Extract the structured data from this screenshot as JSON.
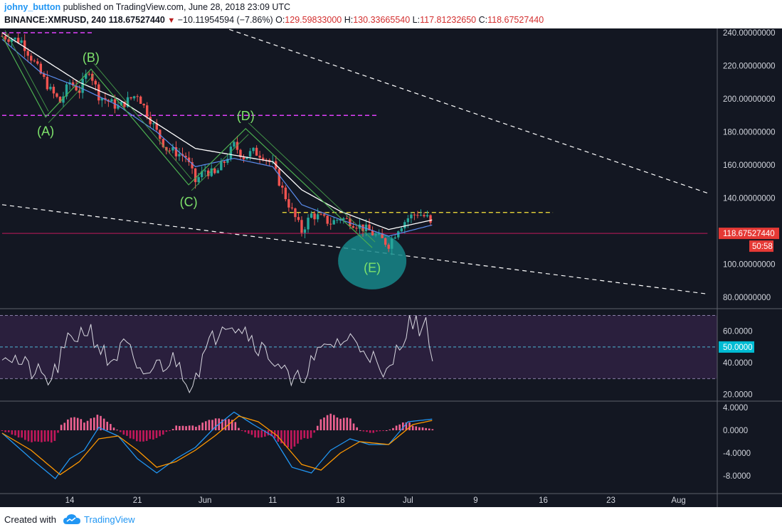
{
  "header": {
    "author": "johny_button",
    "published": "published on TradingView.com, June 28, 2018 23:09 UTC",
    "symbol": "BINANCE:XMRUSD, 240",
    "last": "118.67527440",
    "change": "−10.11954594 (−7.86%)",
    "o_label": "O:",
    "o": "129.59833000",
    "h_label": "H:",
    "h": "130.33665540",
    "l_label": "L:",
    "l": "117.81232650",
    "c_label": "C:",
    "c": "118.67527440"
  },
  "footer": {
    "created_with": "Created with",
    "brand": "TradingView"
  },
  "colors": {
    "background": "#131722",
    "up": "#26a69a",
    "down": "#ef5350",
    "ma_white": "#ffffff",
    "ma_blue": "#5b8def",
    "pattern": "#4caf50",
    "label_green": "#7ee36b",
    "magenta": "#e040fb",
    "yellow": "#ffeb3b",
    "rsi_band": "#2a1f3d",
    "macd_blue": "#2196f3",
    "macd_orange": "#ff9800",
    "hist_up": "#f06292",
    "ellipse": "#17878a"
  },
  "chart_data": [
    {
      "type": "candlestick",
      "x_labels": [
        "14",
        "21",
        "Jun",
        "11",
        "18",
        "Jul",
        "9",
        "16",
        "23",
        "Aug"
      ],
      "y_ticks": [
        "240.00000000",
        "220.00000000",
        "200.00000000",
        "180.00000000",
        "160.00000000",
        "140.00000000",
        "100.00000000",
        "80.00000000"
      ],
      "ylim": [
        74,
        242
      ],
      "price_label": "118.67527440",
      "countdown": "50:58",
      "wave_labels": [
        "(A)",
        "(B)",
        "(C)",
        "(D)",
        "(E)"
      ],
      "anchors": [
        {
          "day": 0,
          "price": 238
        },
        {
          "day": 2,
          "price": 235
        },
        {
          "day": 4,
          "price": 215
        },
        {
          "day": 5,
          "price": 205
        },
        {
          "day": 6,
          "price": 198
        },
        {
          "day": 7,
          "price": 210
        },
        {
          "day": 8,
          "price": 205
        },
        {
          "day": 9,
          "price": 218
        },
        {
          "day": 10,
          "price": 202
        },
        {
          "day": 12,
          "price": 195
        },
        {
          "day": 14,
          "price": 203
        },
        {
          "day": 16,
          "price": 180
        },
        {
          "day": 17,
          "price": 170
        },
        {
          "day": 19,
          "price": 165
        },
        {
          "day": 20,
          "price": 150
        },
        {
          "day": 21,
          "price": 157
        },
        {
          "day": 22,
          "price": 154
        },
        {
          "day": 23,
          "price": 162
        },
        {
          "day": 24,
          "price": 172
        },
        {
          "day": 25,
          "price": 165
        },
        {
          "day": 26,
          "price": 168
        },
        {
          "day": 27,
          "price": 166
        },
        {
          "day": 28,
          "price": 160
        },
        {
          "day": 29,
          "price": 145
        },
        {
          "day": 30,
          "price": 132
        },
        {
          "day": 31,
          "price": 120
        },
        {
          "day": 32,
          "price": 130
        },
        {
          "day": 33,
          "price": 128
        },
        {
          "day": 34,
          "price": 125
        },
        {
          "day": 35,
          "price": 128
        },
        {
          "day": 36,
          "price": 126
        },
        {
          "day": 37,
          "price": 123
        },
        {
          "day": 38,
          "price": 120
        },
        {
          "day": 39,
          "price": 116
        },
        {
          "day": 40,
          "price": 112
        },
        {
          "day": 41,
          "price": 122
        },
        {
          "day": 42,
          "price": 128
        },
        {
          "day": 43,
          "price": 131
        },
        {
          "day": 44,
          "price": 128
        },
        {
          "day": 44.7,
          "price": 119
        }
      ],
      "ma_white": [
        {
          "day": 0,
          "price": 240
        },
        {
          "day": 4,
          "price": 225
        },
        {
          "day": 8,
          "price": 210
        },
        {
          "day": 12,
          "price": 200
        },
        {
          "day": 16,
          "price": 185
        },
        {
          "day": 20,
          "price": 170
        },
        {
          "day": 24,
          "price": 166
        },
        {
          "day": 28,
          "price": 162
        },
        {
          "day": 31,
          "price": 145
        },
        {
          "day": 35,
          "price": 132
        },
        {
          "day": 40,
          "price": 121
        },
        {
          "day": 44.7,
          "price": 127
        }
      ],
      "ma_blue": [
        {
          "day": 0,
          "price": 236
        },
        {
          "day": 4,
          "price": 216
        },
        {
          "day": 8,
          "price": 207
        },
        {
          "day": 12,
          "price": 196
        },
        {
          "day": 16,
          "price": 180
        },
        {
          "day": 20,
          "price": 159
        },
        {
          "day": 24,
          "price": 164
        },
        {
          "day": 28,
          "price": 159
        },
        {
          "day": 31,
          "price": 136
        },
        {
          "day": 35,
          "price": 127
        },
        {
          "day": 40,
          "price": 117
        },
        {
          "day": 44.7,
          "price": 124
        }
      ],
      "pattern_points": [
        {
          "day": 0,
          "price": 238
        },
        {
          "day": 4.5,
          "price": 189
        },
        {
          "day": 9.2,
          "price": 218
        },
        {
          "day": 19.3,
          "price": 148
        },
        {
          "day": 25.2,
          "price": 182
        },
        {
          "day": 38.3,
          "price": 110
        }
      ],
      "hlines": [
        {
          "price": 240,
          "from_day": 0,
          "to_day": 9.5,
          "style": "magenta"
        },
        {
          "price": 190,
          "from_day": 0,
          "to_day": 39,
          "style": "magenta"
        },
        {
          "price": 131.3,
          "from_day": 29,
          "to_day": 57,
          "style": "yellow"
        },
        {
          "price": 118.67,
          "from_day": 0,
          "to_day": 73,
          "style": "price"
        }
      ],
      "trendlines": [
        {
          "day1": 23.5,
          "price1": 242,
          "day2": 73,
          "price2": 143
        },
        {
          "day1": 0,
          "price1": 136,
          "day2": 73,
          "price2": 82
        }
      ]
    },
    {
      "type": "line",
      "name": "",
      "y_ticks": [
        "60.0000",
        "40.0000",
        "20.0000"
      ],
      "ylim": [
        18,
        72
      ],
      "band": [
        30,
        70
      ],
      "midline": 50,
      "mid_label": "50.0000",
      "anchors": [
        {
          "day": 0,
          "value": 48
        },
        {
          "day": 3,
          "value": 35
        },
        {
          "day": 5,
          "value": 28
        },
        {
          "day": 7,
          "value": 55
        },
        {
          "day": 9,
          "value": 62
        },
        {
          "day": 11,
          "value": 40
        },
        {
          "day": 13,
          "value": 52
        },
        {
          "day": 14,
          "value": 30
        },
        {
          "day": 16,
          "value": 38
        },
        {
          "day": 18,
          "value": 42
        },
        {
          "day": 19.5,
          "value": 26
        },
        {
          "day": 21,
          "value": 46
        },
        {
          "day": 23,
          "value": 68
        },
        {
          "day": 25,
          "value": 62
        },
        {
          "day": 27,
          "value": 48
        },
        {
          "day": 29,
          "value": 38
        },
        {
          "day": 30,
          "value": 24
        },
        {
          "day": 32,
          "value": 40
        },
        {
          "day": 34,
          "value": 52
        },
        {
          "day": 36,
          "value": 55
        },
        {
          "day": 38,
          "value": 48
        },
        {
          "day": 39.5,
          "value": 27
        },
        {
          "day": 41,
          "value": 50
        },
        {
          "day": 42,
          "value": 65
        },
        {
          "day": 44,
          "value": 62
        },
        {
          "day": 44.7,
          "value": 41
        }
      ]
    },
    {
      "type": "line",
      "name": "",
      "y_ticks": [
        "4.0000",
        "0.0000",
        "-4.0000",
        "-8.0000"
      ],
      "ylim": [
        -10.5,
        4.5
      ],
      "macd": [
        {
          "day": 0,
          "value": -0.5
        },
        {
          "day": 3,
          "value": -5
        },
        {
          "day": 5.5,
          "value": -8.5
        },
        {
          "day": 7,
          "value": -5
        },
        {
          "day": 8.5,
          "value": -3.5
        },
        {
          "day": 10,
          "value": 0.5
        },
        {
          "day": 12,
          "value": -1
        },
        {
          "day": 14,
          "value": -5
        },
        {
          "day": 16,
          "value": -7.5
        },
        {
          "day": 18,
          "value": -5
        },
        {
          "day": 20,
          "value": -3
        },
        {
          "day": 22,
          "value": 0.5
        },
        {
          "day": 24,
          "value": 3.2
        },
        {
          "day": 26,
          "value": 1
        },
        {
          "day": 28,
          "value": -1
        },
        {
          "day": 30,
          "value": -6.5
        },
        {
          "day": 32,
          "value": -7.5
        },
        {
          "day": 34,
          "value": -3.5
        },
        {
          "day": 36,
          "value": -1.5
        },
        {
          "day": 38,
          "value": -2.5
        },
        {
          "day": 40,
          "value": -2.5
        },
        {
          "day": 42,
          "value": 1.5
        },
        {
          "day": 44.7,
          "value": 2
        }
      ],
      "signal": [
        {
          "day": 0,
          "value": -0.5
        },
        {
          "day": 3,
          "value": -3.5
        },
        {
          "day": 6,
          "value": -7.8
        },
        {
          "day": 8,
          "value": -5.5
        },
        {
          "day": 10,
          "value": -1.5
        },
        {
          "day": 12,
          "value": -1
        },
        {
          "day": 14,
          "value": -3.5
        },
        {
          "day": 16,
          "value": -6.5
        },
        {
          "day": 18,
          "value": -5.5
        },
        {
          "day": 20,
          "value": -3.5
        },
        {
          "day": 22,
          "value": -1
        },
        {
          "day": 24.5,
          "value": 2.5
        },
        {
          "day": 26.5,
          "value": 1.5
        },
        {
          "day": 28.5,
          "value": -1
        },
        {
          "day": 31,
          "value": -6
        },
        {
          "day": 33,
          "value": -7
        },
        {
          "day": 35,
          "value": -4
        },
        {
          "day": 37,
          "value": -2
        },
        {
          "day": 40,
          "value": -2.5
        },
        {
          "day": 42.5,
          "value": 1
        },
        {
          "day": 44.7,
          "value": 1.8
        }
      ]
    }
  ]
}
